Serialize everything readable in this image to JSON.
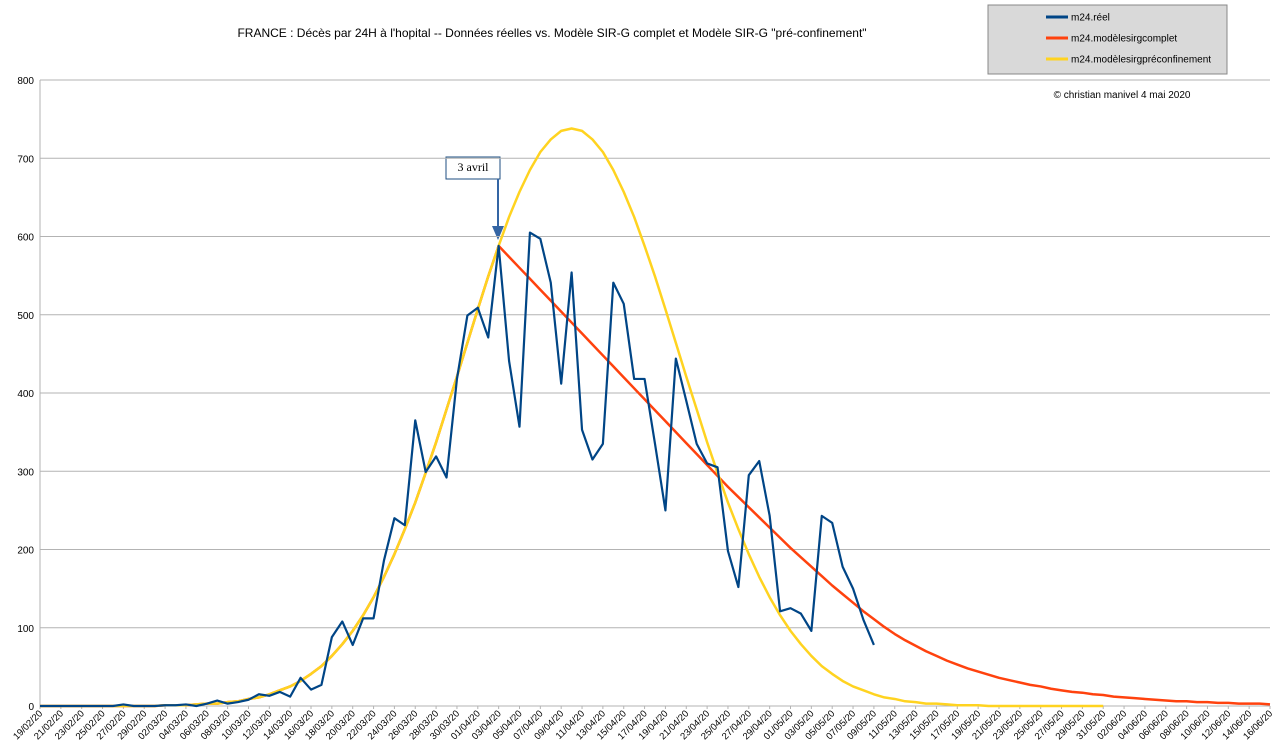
{
  "chart_data": {
    "type": "line",
    "title": "FRANCE : Décès par 24H à l'hopital -- Données réelles vs. Modèle SIR-G complet et  Modèle SIR-G \"pré-confinement\"",
    "annotations": [
      "3 avril",
      "© christian manivel 4 mai 2020"
    ],
    "categories": [
      "19/02/20",
      null,
      "21/02/20",
      null,
      "23/02/20",
      null,
      "25/02/20",
      null,
      "27/02/20",
      null,
      "29/02/20",
      null,
      "02/03/20",
      null,
      "04/03/20",
      null,
      "06/03/20",
      null,
      "08/03/20",
      null,
      "10/03/20",
      null,
      "12/03/20",
      null,
      "14/03/20",
      null,
      "16/03/20",
      null,
      "18/03/20",
      null,
      "20/03/20",
      null,
      "22/03/20",
      null,
      "24/03/20",
      null,
      "26/03/20",
      null,
      "28/03/20",
      null,
      "30/03/20",
      null,
      "01/04/20",
      null,
      "03/04/20",
      null,
      "05/04/20",
      null,
      "07/04/20",
      null,
      "09/04/20",
      null,
      "11/04/20",
      null,
      "13/04/20",
      null,
      "15/04/20",
      null,
      "17/04/20",
      null,
      "19/04/20",
      null,
      "21/04/20",
      null,
      "23/04/20",
      null,
      "25/04/20",
      null,
      "27/04/20",
      null,
      "29/04/20",
      null,
      "01/05/20",
      null,
      "03/05/20",
      null,
      "05/05/20",
      null,
      "07/05/20",
      null,
      "09/05/20",
      null,
      "11/05/20",
      null,
      "13/05/20",
      null,
      "15/05/20",
      null,
      "17/05/20",
      null,
      "19/05/20",
      null,
      "21/05/20",
      null,
      "23/05/20",
      null,
      "25/05/20",
      null,
      "27/05/20",
      null,
      "29/05/20",
      null,
      "31/05/20",
      null,
      "02/06/20",
      null,
      "04/06/20",
      null,
      "06/06/20",
      null,
      "08/06/20",
      null,
      "10/06/20",
      null,
      "12/06/20",
      null,
      "14/06/20",
      null,
      "16/06/20"
    ],
    "series": [
      {
        "name": "m24.réel",
        "color": "#004586",
        "values": [
          0,
          0,
          0,
          0,
          0,
          0,
          0,
          0,
          2,
          0,
          0,
          0,
          1,
          1,
          2,
          0,
          3,
          7,
          3,
          5,
          8,
          15,
          13,
          18,
          12,
          36,
          21,
          27,
          88,
          108,
          78,
          112,
          112,
          186,
          240,
          231,
          365,
          299,
          319,
          292,
          418,
          499,
          509,
          471,
          588,
          441,
          357,
          605,
          597,
          541,
          412,
          554,
          353,
          315,
          335,
          541,
          514,
          418,
          418,
          335,
          250,
          444,
          390,
          335,
          310,
          305,
          198,
          152,
          295,
          313,
          243,
          121,
          125,
          118,
          96,
          243,
          234,
          178,
          150,
          110,
          78,
          null,
          null,
          null,
          null,
          null,
          null,
          null,
          null,
          null,
          null,
          null,
          null,
          null,
          null,
          null,
          null,
          null,
          null,
          null,
          null,
          null,
          null,
          null,
          null,
          null,
          null,
          null,
          null,
          null,
          null,
          null,
          null,
          null,
          null,
          null,
          null,
          null,
          null
        ]
      },
      {
        "name": "m24.modèlesirgcomplet",
        "color": "#ff420e",
        "values": [
          0,
          0,
          0,
          0,
          0,
          0,
          0,
          0,
          0,
          0,
          0,
          0,
          1,
          1,
          1,
          2,
          3,
          3,
          5,
          6,
          9,
          11,
          15,
          20,
          25,
          32,
          41,
          51,
          64,
          79,
          96,
          116,
          139,
          165,
          194,
          226,
          260,
          298,
          337,
          379,
          421,
          464,
          507,
          549,
          588,
          574,
          560,
          546,
          532,
          518,
          504,
          490,
          476,
          462,
          448,
          434,
          420,
          406,
          392,
          378,
          364,
          350,
          336,
          322,
          308,
          294,
          280,
          267,
          254,
          241,
          228,
          215,
          202,
          190,
          178,
          166,
          154,
          143,
          132,
          121,
          111,
          101,
          92,
          84,
          77,
          70,
          64,
          58,
          53,
          48,
          44,
          40,
          36,
          33,
          30,
          27,
          25,
          22,
          20,
          18,
          17,
          15,
          14,
          12,
          11,
          10,
          9,
          8,
          7,
          6,
          6,
          5,
          5,
          4,
          4,
          3,
          3,
          3,
          2
        ]
      },
      {
        "name": "m24.modèlesirgpréconfinement",
        "color": "#ffd320",
        "values": [
          0,
          0,
          0,
          0,
          0,
          0,
          0,
          0,
          0,
          0,
          0,
          0,
          1,
          1,
          1,
          2,
          3,
          3,
          5,
          6,
          9,
          11,
          15,
          20,
          25,
          32,
          41,
          51,
          64,
          79,
          96,
          116,
          139,
          165,
          194,
          226,
          260,
          298,
          337,
          379,
          421,
          464,
          507,
          549,
          588,
          625,
          657,
          685,
          708,
          724,
          735,
          738,
          735,
          724,
          708,
          685,
          657,
          625,
          588,
          549,
          507,
          464,
          421,
          379,
          337,
          298,
          260,
          226,
          194,
          165,
          139,
          116,
          96,
          79,
          64,
          51,
          41,
          32,
          25,
          20,
          15,
          11,
          9,
          6,
          5,
          3,
          3,
          2,
          1,
          1,
          1,
          0,
          0,
          0,
          0,
          0,
          0,
          0,
          0,
          0,
          0,
          0,
          0,
          null,
          null,
          null,
          null,
          null,
          null,
          null,
          null,
          null,
          null,
          null,
          null,
          null,
          null,
          null,
          null
        ]
      }
    ],
    "ylim": [
      0,
      800
    ],
    "yticks": [
      0,
      100,
      200,
      300,
      400,
      500,
      600,
      700,
      800
    ],
    "grid": true,
    "legend": "top-right"
  }
}
